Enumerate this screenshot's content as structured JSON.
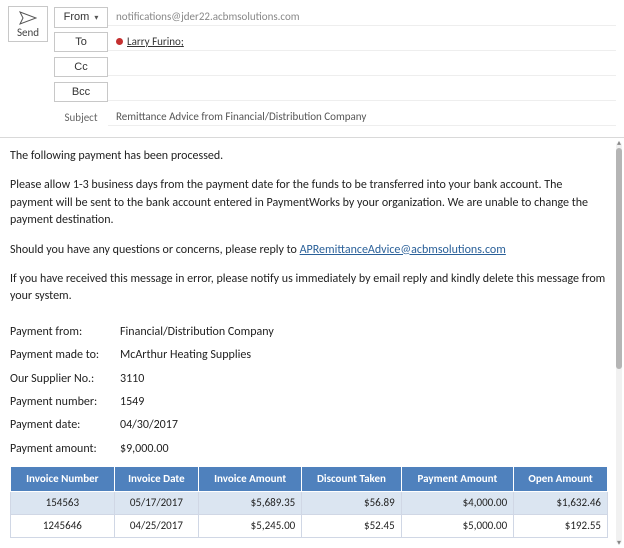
{
  "header": {
    "send_label": "Send",
    "from_label": "From",
    "from_value": "notifications@jder22.acbmsolutions.com",
    "to_label": "To",
    "to_recipient": "Larry Furino",
    "to_presence_color": "#c43030",
    "cc_label": "Cc",
    "bcc_label": "Bcc",
    "subject_label": "Subject",
    "subject_value": "Remittance Advice from Financial/Distribution Company"
  },
  "body": {
    "p1": "The following payment has been processed.",
    "p2": "Please allow 1-3 business days from the payment date for the funds to be transferred into your bank account. The payment will be sent to the bank account entered in PaymentWorks by your organization. We are unable to change the payment destination.",
    "p3a": "Should you have any questions or concerns, please reply to ",
    "p3_link": "APRemittanceAdvice@acbmsolutions.com",
    "p4": "If you have received this message in error, please notify us immediately by email reply and kindly delete this message from your system."
  },
  "details": {
    "labels": {
      "payment_from": "Payment from:",
      "payment_made_to": "Payment made to:",
      "supplier_no": "Our Supplier No.:",
      "payment_number": "Payment number:",
      "payment_date": "Payment date:",
      "payment_amount": "Payment amount:"
    },
    "values": {
      "payment_from": "Financial/Distribution Company",
      "payment_made_to": "McArthur Heating Supplies",
      "supplier_no": "3110",
      "payment_number": "1549",
      "payment_date": "04/30/2017",
      "payment_amount": "$9,000.00"
    }
  },
  "table": {
    "header_bg": "#4f81bd",
    "row_alt_bg": "#dbe5f1",
    "columns": [
      "Invoice Number",
      "Invoice Date",
      "Invoice Amount",
      "Discount Taken",
      "Payment Amount",
      "Open Amount"
    ],
    "rows": [
      [
        "154563",
        "05/17/2017",
        "$5,689.35",
        "$56.89",
        "$4,000.00",
        "$1,632.46"
      ],
      [
        "1245646",
        "04/25/2017",
        "$5,245.00",
        "$52.45",
        "$5,000.00",
        "$192.55"
      ]
    ]
  },
  "style": {
    "link_color": "#2a6099",
    "scrollbar_thumb": "#b5b5b5"
  }
}
